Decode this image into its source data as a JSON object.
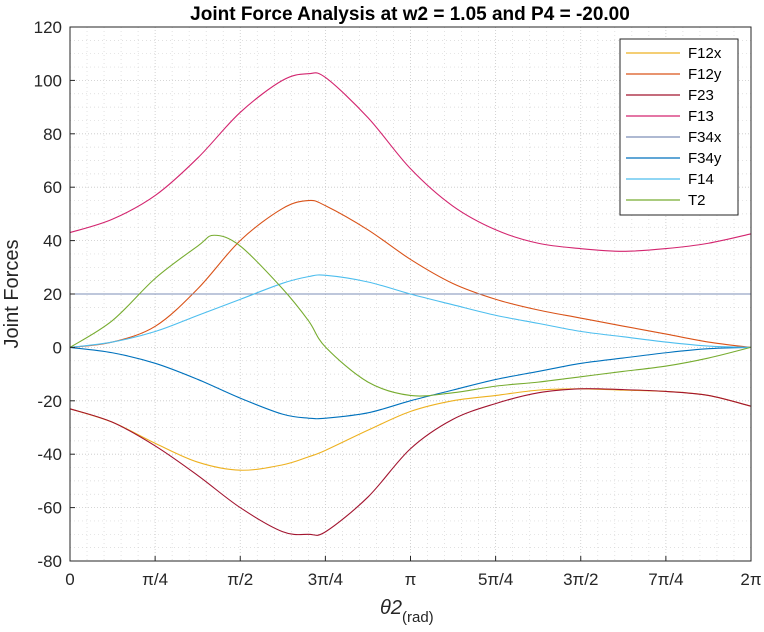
{
  "chart_data": {
    "type": "line",
    "title": "Joint Force Analysis at w2 = 1.05 and P4 = -20.00",
    "ylabel": "Joint Forces",
    "xlabel_main": "θ2",
    "xlabel_sub": "(rad)",
    "xlim": [
      0,
      6.2832
    ],
    "ylim": [
      -80,
      120
    ],
    "grid": true,
    "minor_grid": true,
    "legend_position": "top-right",
    "xticks": [
      0,
      0.7854,
      1.5708,
      2.3562,
      3.1416,
      3.927,
      4.7124,
      5.4978,
      6.2832
    ],
    "xtick_labels": [
      "0",
      "π/4",
      "π/2",
      "3π/4",
      "π",
      "5π/4",
      "3π/2",
      "7π/4",
      "2π"
    ],
    "yticks": [
      -80,
      -60,
      -40,
      -20,
      0,
      20,
      40,
      60,
      80,
      100,
      120
    ],
    "ytick_labels": [
      "-80",
      "-60",
      "-40",
      "-20",
      "0",
      "20",
      "40",
      "60",
      "80",
      "100",
      "120"
    ],
    "series": [
      {
        "name": "F12x",
        "color": "#EDB120",
        "points": [
          [
            0,
            -23
          ],
          [
            0.39,
            -28
          ],
          [
            0.79,
            -36
          ],
          [
            1.18,
            -43
          ],
          [
            1.57,
            -46
          ],
          [
            1.96,
            -44
          ],
          [
            2.2,
            -41
          ],
          [
            2.36,
            -38.5
          ],
          [
            2.75,
            -31
          ],
          [
            3.14,
            -24
          ],
          [
            3.53,
            -20
          ],
          [
            3.93,
            -18
          ],
          [
            4.32,
            -16
          ],
          [
            4.71,
            -15.5
          ],
          [
            5.1,
            -16
          ],
          [
            5.5,
            -16.5
          ],
          [
            5.89,
            -18
          ],
          [
            6.28,
            -22
          ]
        ]
      },
      {
        "name": "F12y",
        "color": "#D95319",
        "points": [
          [
            0,
            0
          ],
          [
            0.39,
            2
          ],
          [
            0.79,
            8
          ],
          [
            1.18,
            22
          ],
          [
            1.57,
            40
          ],
          [
            1.96,
            52
          ],
          [
            2.2,
            55
          ],
          [
            2.36,
            53
          ],
          [
            2.75,
            44
          ],
          [
            3.14,
            33
          ],
          [
            3.53,
            24
          ],
          [
            3.93,
            18
          ],
          [
            4.32,
            14
          ],
          [
            4.71,
            11
          ],
          [
            5.1,
            8
          ],
          [
            5.5,
            5
          ],
          [
            5.89,
            2
          ],
          [
            6.28,
            0
          ]
        ]
      },
      {
        "name": "F23",
        "color": "#A2142F",
        "points": [
          [
            0,
            -23
          ],
          [
            0.39,
            -28
          ],
          [
            0.79,
            -37
          ],
          [
            1.18,
            -48
          ],
          [
            1.57,
            -60
          ],
          [
            1.96,
            -69
          ],
          [
            2.2,
            -70
          ],
          [
            2.36,
            -69
          ],
          [
            2.75,
            -56
          ],
          [
            3.14,
            -38
          ],
          [
            3.53,
            -27
          ],
          [
            3.93,
            -21
          ],
          [
            4.32,
            -17
          ],
          [
            4.71,
            -15.5
          ],
          [
            5.1,
            -15.8
          ],
          [
            5.5,
            -16.5
          ],
          [
            5.89,
            -18
          ],
          [
            6.28,
            -22
          ]
        ]
      },
      {
        "name": "F13",
        "color": "#D3256F",
        "points": [
          [
            0,
            43
          ],
          [
            0.39,
            48
          ],
          [
            0.79,
            57
          ],
          [
            1.18,
            71
          ],
          [
            1.57,
            88
          ],
          [
            1.96,
            100
          ],
          [
            2.2,
            102.5
          ],
          [
            2.36,
            101
          ],
          [
            2.75,
            86
          ],
          [
            3.14,
            67
          ],
          [
            3.53,
            53
          ],
          [
            3.93,
            44
          ],
          [
            4.32,
            39
          ],
          [
            4.71,
            37
          ],
          [
            5.1,
            36
          ],
          [
            5.5,
            37
          ],
          [
            5.89,
            39
          ],
          [
            6.28,
            42.5
          ]
        ]
      },
      {
        "name": "F34x",
        "color": "#7E8FB7",
        "points": [
          [
            0,
            20
          ],
          [
            6.28,
            20
          ]
        ]
      },
      {
        "name": "F34y",
        "color": "#0072BD",
        "points": [
          [
            0,
            0
          ],
          [
            0.39,
            -2
          ],
          [
            0.79,
            -6
          ],
          [
            1.18,
            -12
          ],
          [
            1.57,
            -19
          ],
          [
            1.96,
            -25
          ],
          [
            2.2,
            -26.5
          ],
          [
            2.36,
            -26.5
          ],
          [
            2.75,
            -24.5
          ],
          [
            3.14,
            -20
          ],
          [
            3.53,
            -16
          ],
          [
            3.93,
            -12
          ],
          [
            4.32,
            -9
          ],
          [
            4.71,
            -6
          ],
          [
            5.1,
            -4
          ],
          [
            5.5,
            -2
          ],
          [
            5.89,
            -0.5
          ],
          [
            6.28,
            0
          ]
        ]
      },
      {
        "name": "F14",
        "color": "#4DBEEE",
        "points": [
          [
            0,
            0
          ],
          [
            0.39,
            2
          ],
          [
            0.79,
            6
          ],
          [
            1.18,
            12
          ],
          [
            1.57,
            18
          ],
          [
            1.96,
            24
          ],
          [
            2.2,
            26.5
          ],
          [
            2.36,
            27
          ],
          [
            2.75,
            24.5
          ],
          [
            3.14,
            20
          ],
          [
            3.53,
            16
          ],
          [
            3.93,
            12
          ],
          [
            4.32,
            9
          ],
          [
            4.71,
            6
          ],
          [
            5.1,
            4
          ],
          [
            5.5,
            2
          ],
          [
            5.89,
            0.5
          ],
          [
            6.28,
            0
          ]
        ]
      },
      {
        "name": "T2",
        "color": "#77AC30",
        "points": [
          [
            0,
            0
          ],
          [
            0.39,
            10
          ],
          [
            0.79,
            26
          ],
          [
            1.18,
            38
          ],
          [
            1.33,
            42
          ],
          [
            1.57,
            38
          ],
          [
            1.96,
            22
          ],
          [
            2.2,
            10
          ],
          [
            2.36,
            0
          ],
          [
            2.75,
            -13
          ],
          [
            3.14,
            -18
          ],
          [
            3.53,
            -17
          ],
          [
            3.93,
            -14.5
          ],
          [
            4.32,
            -13
          ],
          [
            4.71,
            -11
          ],
          [
            5.1,
            -9
          ],
          [
            5.5,
            -7
          ],
          [
            5.89,
            -4
          ],
          [
            6.28,
            0
          ]
        ]
      }
    ]
  }
}
